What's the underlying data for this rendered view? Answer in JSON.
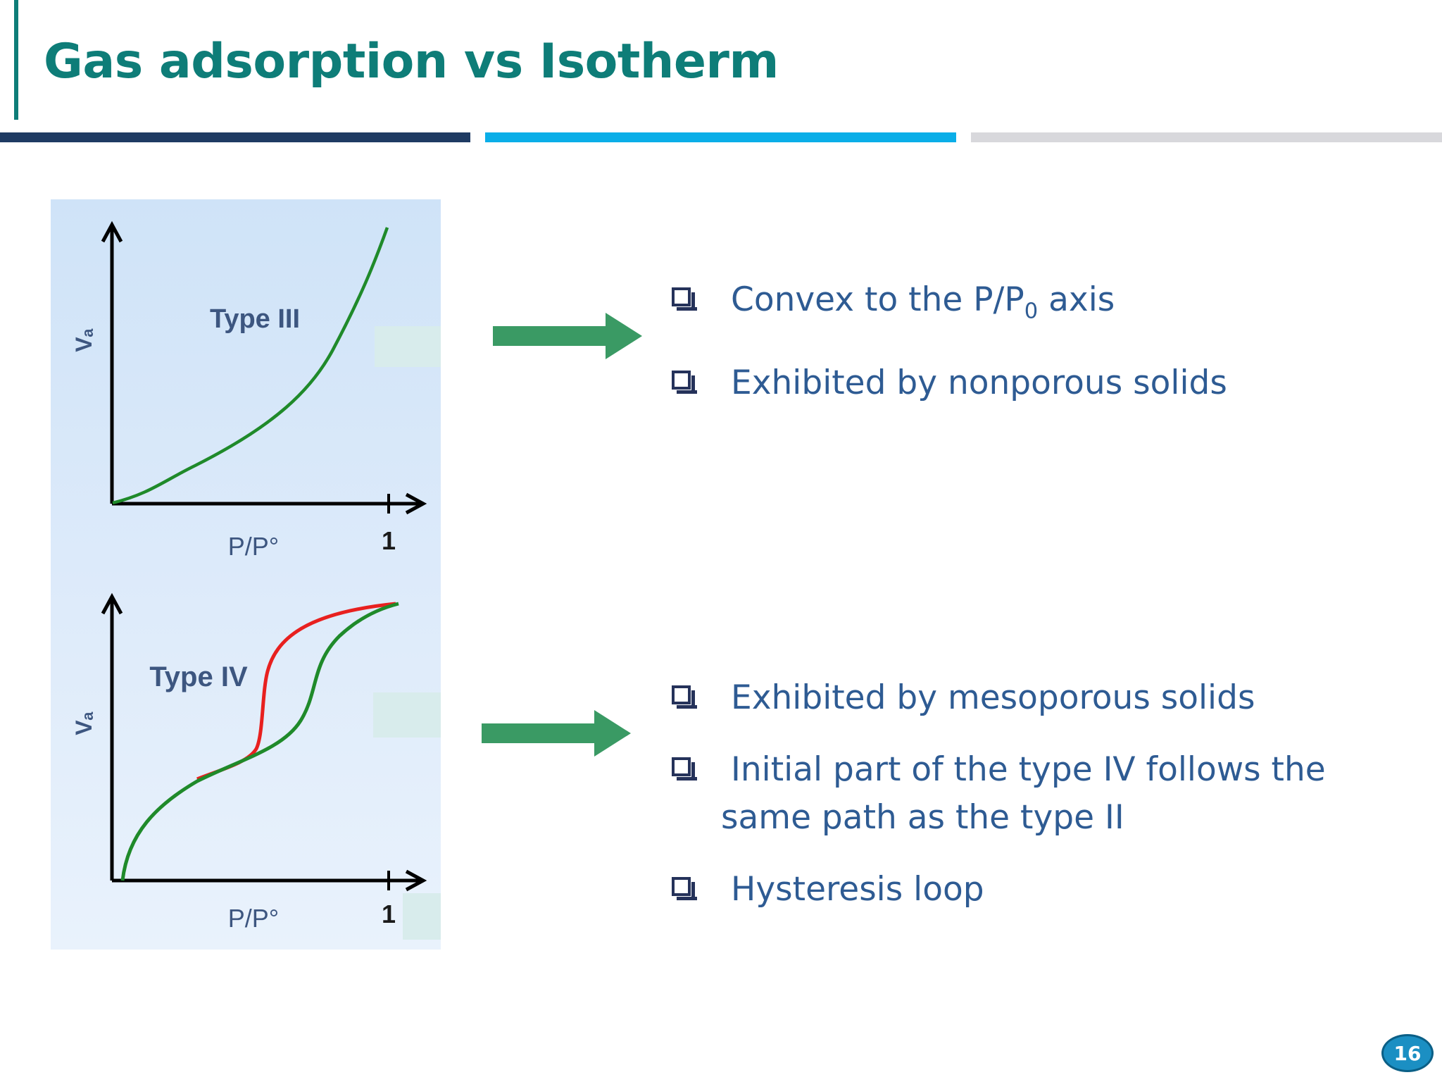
{
  "slide": {
    "title": "Gas adsorption vs Isotherm",
    "page_number": "16"
  },
  "figure": {
    "panels": [
      {
        "label": "Type III",
        "y_axis_label": "Vₐ",
        "x_axis_label": "P/P°",
        "x_tick": "1",
        "curve_color": "#1f8a2a"
      },
      {
        "label": "Type IV",
        "y_axis_label": "Vₐ",
        "x_axis_label": "P/P°",
        "x_tick": "1",
        "adsorption_color": "#1f8a2a",
        "desorption_color": "#e8201f"
      }
    ]
  },
  "arrow_color": "#3a9a64",
  "bullets_type_iii": {
    "item1_prefix": "Convex to the P/P",
    "item1_sub": "0",
    "item1_suffix": " axis",
    "item2": "Exhibited by nonporous solids"
  },
  "bullets_type_iv": {
    "item1": "Exhibited by mesoporous solids",
    "item2_line1": "Initial part of the type IV follows the",
    "item2_line2": "same path as the type II",
    "item3": "Hysteresis loop"
  }
}
